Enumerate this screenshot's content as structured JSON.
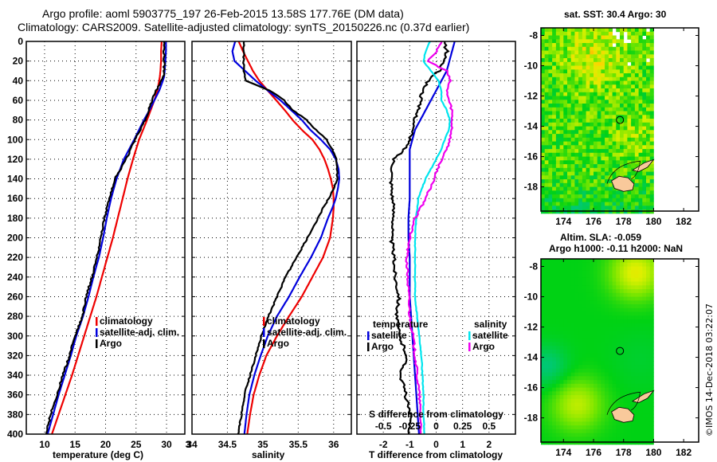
{
  "header": {
    "title_line1": "Argo profile: aoml 5903775_197 26-Feb-2015 13.58S 177.76E (DM data)",
    "title_line2": "Climatology: CARS2009. Satellite-adjusted climatology: synTS_20150226.nc (0.37d earlier)"
  },
  "colors": {
    "climatology": "#ee0000",
    "satellite": "#0000dd",
    "argo": "#000000",
    "sal_satellite": "#00e5ee",
    "sal_argo": "#ee00ee",
    "land": "#f9c99b"
  },
  "chart_data": [
    {
      "type": "line",
      "name": "temperature-profile",
      "xlabel": "temperature (deg C)",
      "ylabel": "",
      "xlim": [
        7,
        33
      ],
      "ylim": [
        400,
        0
      ],
      "xticks": [
        10,
        15,
        20,
        25,
        30
      ],
      "yticks": [
        0,
        20,
        40,
        60,
        80,
        100,
        120,
        140,
        160,
        180,
        200,
        220,
        240,
        260,
        280,
        300,
        320,
        340,
        360,
        380,
        400
      ],
      "grid": true,
      "legend": {
        "position": "right-middle",
        "entries": [
          "climatology",
          "satellite-adj. clim.",
          "Argo"
        ]
      },
      "depth": [
        0,
        10,
        20,
        30,
        36,
        40,
        50,
        60,
        70,
        80,
        100,
        120,
        140,
        160,
        180,
        200,
        220,
        240,
        260,
        280,
        300,
        320,
        340,
        360,
        380,
        400
      ],
      "series": [
        {
          "name": "climatology",
          "values": [
            29.2,
            29.1,
            29.1,
            29.0,
            28.9,
            28.8,
            28.5,
            28.0,
            27.4,
            26.8,
            25.5,
            24.5,
            23.6,
            22.8,
            22.0,
            21.2,
            20.3,
            19.4,
            18.5,
            17.5,
            16.5,
            15.5,
            14.5,
            13.4,
            12.3,
            11.2
          ]
        },
        {
          "name": "satellite-adj. clim.",
          "values": [
            29.9,
            29.9,
            29.8,
            29.7,
            29.6,
            29.4,
            28.8,
            28.0,
            27.2,
            26.3,
            24.7,
            23.0,
            21.8,
            20.9,
            20.2,
            19.6,
            18.9,
            18.0,
            17.2,
            16.3,
            15.2,
            14.3,
            13.3,
            12.3,
            11.4,
            10.5
          ]
        },
        {
          "name": "Argo",
          "values": [
            29.6,
            29.6,
            29.6,
            29.6,
            29.5,
            29.2,
            28.3,
            27.6,
            27.1,
            26.5,
            24.8,
            23.4,
            21.5,
            20.7,
            19.8,
            19.2,
            18.6,
            17.8,
            16.8,
            16.2,
            15.0,
            14.1,
            13.0,
            12.0,
            11.0,
            10.2
          ]
        }
      ]
    },
    {
      "type": "line",
      "name": "salinity-profile",
      "xlabel": "salinity",
      "xlim": [
        34,
        36.25
      ],
      "ylim": [
        400,
        0
      ],
      "xticks": [
        34,
        34.5,
        35,
        35.5,
        36
      ],
      "grid": true,
      "legend": {
        "position": "right-middle",
        "entries": [
          "climatology",
          "satellite-adj. clim.",
          "Argo"
        ]
      },
      "depth": [
        0,
        10,
        20,
        30,
        40,
        50,
        60,
        70,
        80,
        90,
        100,
        110,
        120,
        130,
        140,
        150,
        160,
        170,
        180,
        200,
        220,
        240,
        260,
        280,
        300,
        320,
        340,
        360,
        380,
        400
      ],
      "series": [
        {
          "name": "climatology",
          "values": [
            34.66,
            34.72,
            34.79,
            34.86,
            34.95,
            35.07,
            35.19,
            35.31,
            35.42,
            35.55,
            35.7,
            35.8,
            35.87,
            35.92,
            35.96,
            35.99,
            36.0,
            36.0,
            35.99,
            35.95,
            35.85,
            35.7,
            35.55,
            35.37,
            35.2,
            35.05,
            34.95,
            34.87,
            34.82,
            34.78
          ]
        },
        {
          "name": "satellite-adj. clim.",
          "values": [
            34.61,
            34.57,
            34.6,
            34.75,
            34.9,
            35.07,
            35.25,
            35.4,
            35.55,
            35.67,
            35.82,
            35.95,
            36.03,
            36.07,
            36.08,
            36.06,
            36.03,
            35.98,
            35.92,
            35.82,
            35.68,
            35.52,
            35.37,
            35.2,
            35.07,
            34.97,
            34.88,
            34.81,
            34.77,
            34.74
          ]
        },
        {
          "name": "Argo",
          "values": [
            34.73,
            34.73,
            34.73,
            34.73,
            34.76,
            35.1,
            35.3,
            35.42,
            35.62,
            35.75,
            35.9,
            35.98,
            36.04,
            36.05,
            36.05,
            36.0,
            35.93,
            35.85,
            35.78,
            35.63,
            35.48,
            35.32,
            35.2,
            35.08,
            34.98,
            34.9,
            34.82,
            34.74,
            34.7,
            34.65
          ]
        }
      ]
    },
    {
      "type": "line",
      "name": "difference-profile",
      "xlabel": "T difference from climatology",
      "xlabel2": "S difference from climatology",
      "xlim": [
        -3,
        3
      ],
      "xlim2": [
        -0.75,
        0.75
      ],
      "ylim": [
        400,
        0
      ],
      "xticks": [
        -2,
        -1,
        0,
        1,
        2
      ],
      "xticks2": [
        -0.5,
        -0.25,
        0,
        0.25,
        0.5
      ],
      "xticks2_labels": [
        "-0.5",
        "-0.25",
        "0",
        "0.25",
        "0.5"
      ],
      "grid": true,
      "legend": {
        "position": "bottom-middle",
        "temperature_title": "temperature",
        "salinity_title": "salinity",
        "entries": [
          "satellite",
          "Argo",
          "satellite",
          "Argo"
        ]
      },
      "depth": [
        0,
        10,
        20,
        30,
        40,
        50,
        60,
        70,
        80,
        90,
        100,
        110,
        120,
        140,
        160,
        180,
        200,
        220,
        240,
        260,
        280,
        300,
        320,
        340,
        360,
        380,
        400
      ],
      "series": [
        {
          "name": "temperature satellite",
          "axis": "T",
          "values": [
            0.7,
            0.6,
            0.5,
            0.4,
            0.2,
            0.0,
            -0.2,
            -0.4,
            -0.6,
            -0.8,
            -0.9,
            -1.0,
            -1.0,
            -1.0,
            -1.0,
            -1.05,
            -1.05,
            -1.0,
            -1.0,
            -1.0,
            -0.95,
            -0.9,
            -0.85,
            -0.8,
            -0.75,
            -0.7,
            -0.65
          ]
        },
        {
          "name": "temperature Argo",
          "axis": "T",
          "values": [
            0.3,
            0.4,
            0.3,
            0.1,
            -0.3,
            -0.5,
            -0.6,
            -0.7,
            -0.8,
            -0.9,
            -1.0,
            -1.2,
            -1.6,
            -1.7,
            -1.65,
            -1.6,
            -1.7,
            -1.6,
            -1.55,
            -1.4,
            -1.5,
            -1.4,
            -1.1,
            -1.35,
            -1.15,
            -1.0,
            -1.0
          ]
        },
        {
          "name": "salinity satellite",
          "axis": "S",
          "values": [
            -0.06,
            -0.1,
            -0.12,
            -0.05,
            0.02,
            0.05,
            0.05,
            0.1,
            0.13,
            0.12,
            0.08,
            0.05,
            0.0,
            -0.1,
            -0.17,
            -0.19,
            -0.2,
            -0.2,
            -0.2,
            -0.2,
            -0.18,
            -0.16,
            -0.14,
            -0.13,
            -0.12,
            -0.12,
            -0.11
          ]
        },
        {
          "name": "salinity Argo",
          "axis": "S",
          "values": [
            0.06,
            0.0,
            -0.08,
            0.1,
            0.13,
            0.1,
            0.12,
            0.15,
            0.15,
            0.15,
            0.13,
            0.1,
            0.05,
            -0.02,
            -0.1,
            -0.2,
            -0.25,
            -0.28,
            -0.27,
            -0.26,
            -0.25,
            -0.22,
            -0.2,
            -0.18,
            -0.16,
            -0.15,
            -0.14
          ]
        }
      ]
    },
    {
      "type": "heatmap",
      "name": "sst-map",
      "title": "sat. SST: 30.4 Argo: 30",
      "xlim": [
        172.5,
        183
      ],
      "ylim": [
        -19.6,
        -7.5
      ],
      "xticks": [
        174,
        176,
        178,
        180,
        182
      ],
      "yticks": [
        -8,
        -10,
        -12,
        -14,
        -16,
        -18
      ],
      "profile_location": {
        "lon": 177.76,
        "lat": -13.58
      }
    },
    {
      "type": "heatmap",
      "name": "sla-map",
      "title_line1": "Altim. SLA: -0.059",
      "title_line2": "Argo h1000: -0.11 h2000: NaN",
      "xlim": [
        172.5,
        183
      ],
      "ylim": [
        -19.6,
        -7.5
      ],
      "xticks": [
        174,
        176,
        178,
        180,
        182
      ],
      "yticks": [
        -8,
        -10,
        -12,
        -14,
        -16,
        -18
      ],
      "profile_location": {
        "lon": 177.76,
        "lat": -13.58
      }
    }
  ],
  "footer": {
    "copyright": "©IMOS 14-Dec-2018 03:22:07"
  }
}
